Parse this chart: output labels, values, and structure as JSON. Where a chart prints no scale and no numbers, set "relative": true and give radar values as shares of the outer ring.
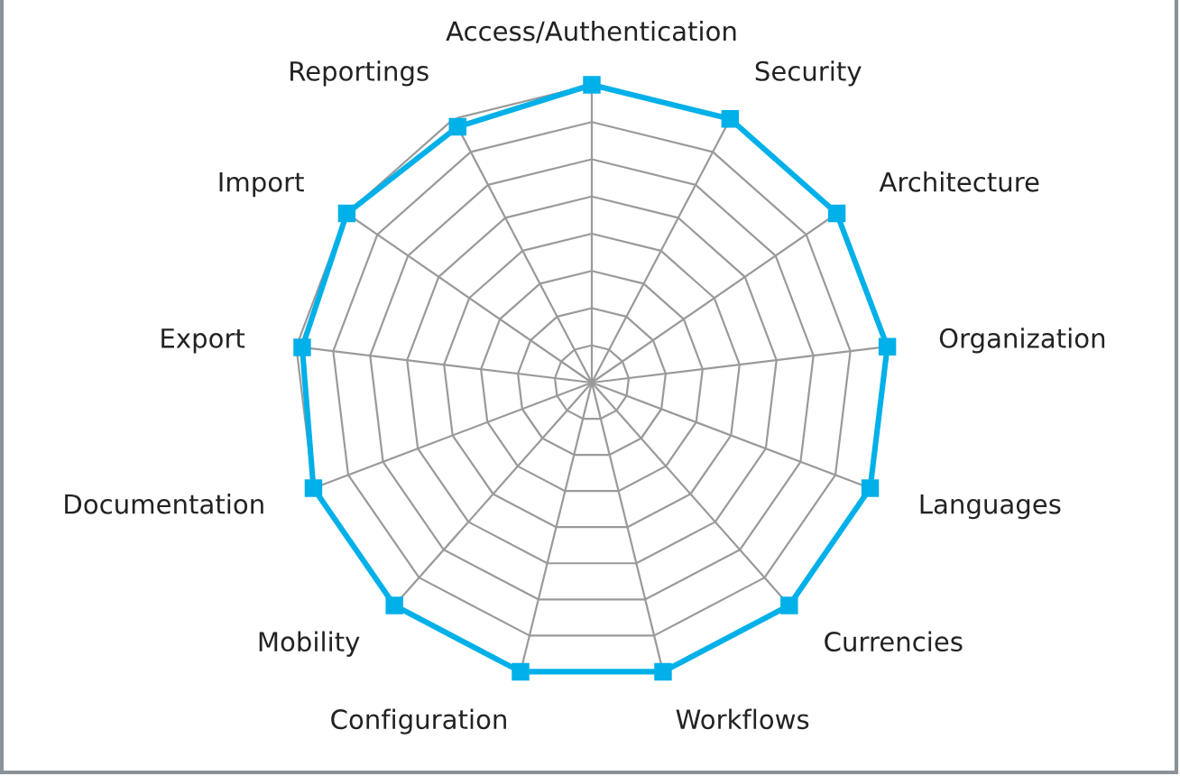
{
  "chart_data": {
    "type": "radar",
    "relative": true,
    "grid": true,
    "marker": "square",
    "categories": [
      "Access/Authentication",
      "Security",
      "Architecture",
      "Organization",
      "Languages",
      "Currencies",
      "Workflows",
      "Configuration",
      "Mobility",
      "Documentation",
      "Export",
      "Import",
      "Reportings"
    ],
    "series": [
      {
        "color": "#00b0e8",
        "values": [
          1,
          1,
          1,
          1,
          1,
          1,
          1,
          1,
          1,
          1,
          0.98,
          1,
          0.97
        ]
      }
    ]
  }
}
